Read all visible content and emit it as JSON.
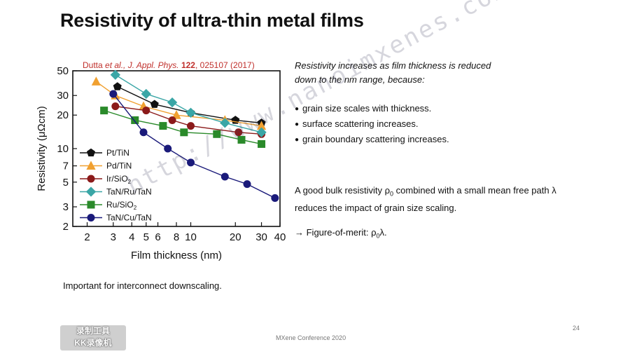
{
  "slide": {
    "title": "Resistivity of ultra-thin metal films",
    "citation": {
      "authors": "Dutta ",
      "etal": "et al.",
      "journal": ", J. Appl. Phys. ",
      "volume": "122",
      "rest": ", 025107 (2017)"
    },
    "intro": "Resistivity increases as film thickness is reduced down to the nm range, because:",
    "bullets": [
      "grain size scales with thickness.",
      "surface scattering increases.",
      "grain boundary scattering increases."
    ],
    "bulk_text": {
      "p1": "A good bulk resistivity ρ",
      "sub0": "0",
      "p2": " combined with a small mean free path λ reduces the impact of grain size scaling."
    },
    "fom": {
      "p1": "→ Figure-of-merit: ρ",
      "sub0": "0",
      "p2": "λ."
    },
    "important": "Important for interconnect downscaling.",
    "page_number": "24",
    "footer": "MXene Conference 2020",
    "watermark_url": "http://www.nanoimxenes.com",
    "badge_line1": "录制工具",
    "badge_line2": "KK录像机"
  },
  "chart_data": {
    "type": "line",
    "xlabel": "Film thickness (nm)",
    "ylabel": "Resistivity (μΩcm)",
    "xscale": "log",
    "yscale": "log",
    "xlim": [
      1.6,
      40
    ],
    "ylim": [
      2,
      50
    ],
    "xticks": [
      2,
      3,
      4,
      5,
      6,
      8,
      10,
      20,
      30,
      40
    ],
    "xtick_labels": [
      "2",
      "3",
      "4",
      "5",
      "6",
      "8",
      "10",
      "20",
      "30",
      "40"
    ],
    "yticks": [
      2,
      3,
      5,
      7,
      10,
      20,
      30,
      50
    ],
    "ytick_labels": [
      "2",
      "3",
      "5",
      "7",
      "10",
      "20",
      "30",
      "50"
    ],
    "legend_position": "lower-left",
    "series": [
      {
        "name": "Pt/TiN",
        "marker": "pentagon",
        "color": "#111111",
        "x": [
          3.2,
          5.7,
          10,
          20,
          30
        ],
        "y": [
          36,
          25,
          21,
          18,
          17
        ]
      },
      {
        "name": "Pd/TiN",
        "marker": "triangle",
        "color": "#f0a030",
        "x": [
          2.3,
          3.1,
          4.8,
          8,
          17,
          30
        ],
        "y": [
          40,
          30,
          24,
          20,
          18,
          16
        ]
      },
      {
        "name": "Ir/SiO2",
        "marker": "circle",
        "color": "#8b1a1a",
        "x": [
          3.1,
          5,
          7.5,
          10,
          21,
          30
        ],
        "y": [
          24,
          22,
          18,
          16,
          14,
          13.5
        ]
      },
      {
        "name": "TaN/Ru/TaN",
        "marker": "diamond",
        "color": "#3aa6a6",
        "x": [
          3.1,
          5,
          7.5,
          10,
          17,
          30
        ],
        "y": [
          46,
          31,
          26,
          21,
          17,
          14
        ]
      },
      {
        "name": "Ru/SiO2",
        "marker": "square",
        "color": "#2a8a2a",
        "x": [
          2.6,
          4.2,
          6.5,
          9,
          15,
          22,
          30
        ],
        "y": [
          22,
          18,
          16,
          14,
          13.5,
          12,
          11
        ]
      },
      {
        "name": "TaN/Cu/TaN",
        "marker": "circle",
        "color": "#1a1a7a",
        "x": [
          3.0,
          4.8,
          7,
          10,
          17,
          24,
          37
        ],
        "y": [
          31,
          14,
          10,
          7.5,
          5.6,
          4.8,
          3.6
        ]
      }
    ]
  }
}
